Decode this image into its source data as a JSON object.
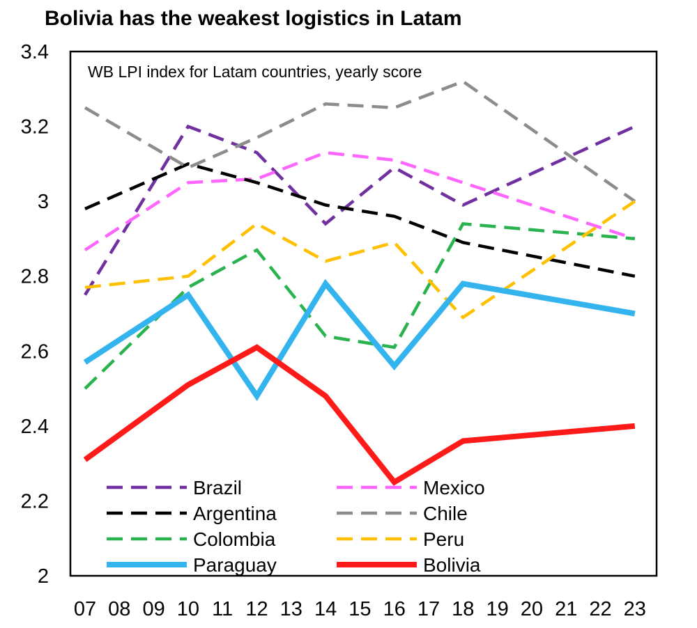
{
  "chart_data": {
    "type": "line",
    "title": "Bolivia has the weakest logistics in Latam",
    "subtitle": "WB LPI index for Latam countries, yearly score",
    "xlabel": "",
    "ylabel": "",
    "ylim": [
      2,
      3.4
    ],
    "yticks": [
      "3.4",
      "3.2",
      "3",
      "2.8",
      "2.6",
      "2.4",
      "2.2",
      "2"
    ],
    "ytick_values": [
      3.4,
      3.2,
      3.0,
      2.8,
      2.6,
      2.4,
      2.2,
      2.0
    ],
    "categories": [
      "07",
      "08",
      "09",
      "10",
      "11",
      "12",
      "13",
      "14",
      "15",
      "16",
      "17",
      "18",
      "19",
      "20",
      "21",
      "22",
      "23"
    ],
    "x_values": [
      7,
      10,
      12,
      14,
      16,
      18,
      23
    ],
    "grid": false,
    "legend_position": "bottom-left",
    "series": [
      {
        "name": "Brazil",
        "color": "#7030a0",
        "style": "dashed",
        "values": [
          2.75,
          3.2,
          3.13,
          2.94,
          3.09,
          2.99,
          3.2
        ]
      },
      {
        "name": "Mexico",
        "color": "#ff66ff",
        "style": "dashed",
        "values": [
          2.87,
          3.05,
          3.06,
          3.13,
          3.11,
          3.05,
          2.9
        ]
      },
      {
        "name": "Argentina",
        "color": "#000000",
        "style": "dashed",
        "values": [
          2.98,
          3.1,
          3.05,
          2.99,
          2.96,
          2.89,
          2.8
        ]
      },
      {
        "name": "Chile",
        "color": "#8c8c8c",
        "style": "dashed",
        "values": [
          3.25,
          3.09,
          3.17,
          3.26,
          3.25,
          3.32,
          3.0
        ]
      },
      {
        "name": "Colombia",
        "color": "#2ab24e",
        "style": "dashed",
        "values": [
          2.5,
          2.77,
          2.87,
          2.64,
          2.61,
          2.94,
          2.9
        ]
      },
      {
        "name": "Peru",
        "color": "#ffc000",
        "style": "dashed",
        "values": [
          2.77,
          2.8,
          2.94,
          2.84,
          2.89,
          2.69,
          3.0
        ]
      },
      {
        "name": "Paraguay",
        "color": "#33b4ee",
        "style": "solid",
        "values": [
          2.57,
          2.75,
          2.48,
          2.78,
          2.56,
          2.78,
          2.7
        ]
      },
      {
        "name": "Bolivia",
        "color": "#ff1a1a",
        "style": "solid",
        "values": [
          2.31,
          2.51,
          2.61,
          2.48,
          2.25,
          2.36,
          2.4
        ]
      }
    ]
  }
}
